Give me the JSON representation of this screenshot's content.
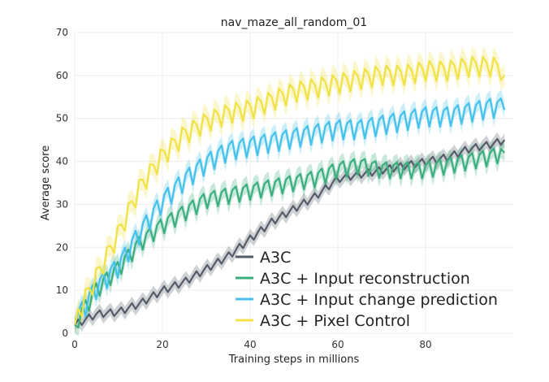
{
  "chart_data": {
    "type": "line",
    "title": "nav_maze_all_random_01",
    "xlabel": "Training steps in millions",
    "ylabel": "Average score",
    "xlim": [
      0,
      100
    ],
    "ylim": [
      0,
      70
    ],
    "xticks": [
      0,
      20,
      40,
      60,
      80
    ],
    "yticks": [
      0,
      10,
      20,
      30,
      40,
      50,
      60,
      70
    ],
    "grid": true,
    "legend_position": "bottom-right",
    "x": [
      0,
      5,
      10,
      15,
      20,
      25,
      30,
      35,
      40,
      45,
      50,
      55,
      60,
      65,
      70,
      75,
      80,
      85,
      90,
      95,
      98
    ],
    "series": [
      {
        "name": "A3C",
        "color": "#545c68",
        "band": 1.5,
        "values": [
          2,
          4.5,
          5,
          7,
          10,
          12,
          15,
          18,
          22,
          26,
          29,
          32,
          36,
          37,
          38,
          39,
          40,
          41,
          43,
          44,
          45
        ]
      },
      {
        "name": "A3C + Input reconstruction",
        "color": "#3bae7f",
        "band": 2.0,
        "values": [
          2,
          10,
          15,
          21,
          25,
          28,
          31,
          32,
          33,
          34,
          35,
          36,
          38,
          39,
          38,
          38,
          38,
          39,
          40,
          41,
          42
        ]
      },
      {
        "name": "A3C + Input change prediction",
        "color": "#45c1ea",
        "band": 2.0,
        "values": [
          2,
          10,
          15,
          23,
          30,
          35,
          39,
          42,
          43,
          44,
          45,
          46,
          47,
          47,
          48,
          49,
          50,
          50,
          51,
          52,
          52
        ]
      },
      {
        "name": "A3C + Pixel Control",
        "color": "#f0e246",
        "band": 2.5,
        "values": [
          2,
          12,
          22,
          33,
          40,
          45,
          48,
          50,
          51,
          53,
          55,
          56,
          57,
          58,
          59,
          59,
          60,
          60,
          61,
          61,
          60
        ]
      }
    ]
  }
}
